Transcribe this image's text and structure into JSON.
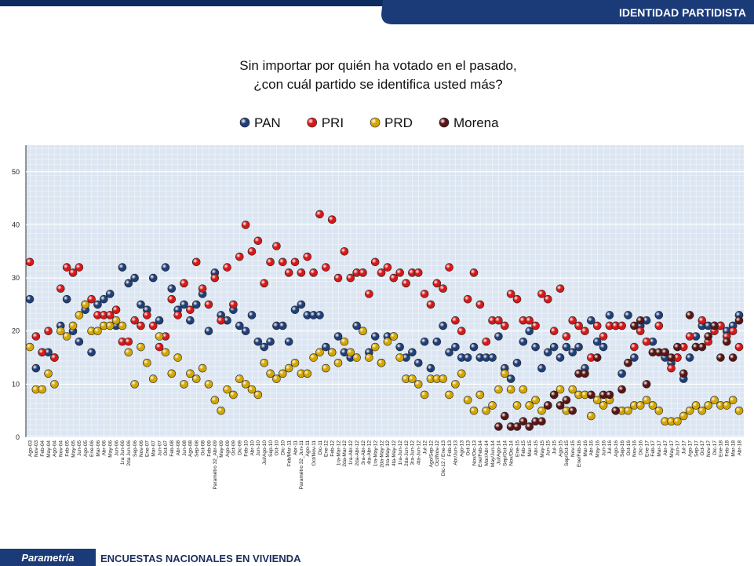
{
  "header": {
    "section": "IDENTIDAD PARTIDISTA"
  },
  "footer": {
    "brand": "Parametría",
    "caption": "ENCUESTAS NACIONALES  EN VIVIENDA"
  },
  "chart_data": {
    "type": "scatter",
    "title": [
      "Sin importar por quién ha votado en el pasado,",
      "¿con cuál partido se identifica usted más?"
    ],
    "categories": [
      "Ago-03",
      "Nov-03",
      "Feb-04",
      "May-04",
      "Ago-04",
      "Nov-04",
      "Feb-05",
      "May-05",
      "Jun-05",
      "Ago-05",
      "Ene-06",
      "Mar-06",
      "Abr-06",
      "May-06",
      "Jun-06",
      "1ra Jun-06",
      "2da Jun-06",
      "Sep-06",
      "Nov-06",
      "Ene-07",
      "Mar-07",
      "Jun-07",
      "Oct-07",
      "Feb-08",
      "Abr-08",
      "Jun-08",
      "Ago-08",
      "Sep-08",
      "Oct-08",
      "Feb-09",
      "Paramétro 32_Abr-09",
      "May-09",
      "Ago-09",
      "Oct-09",
      "Dic-09",
      "Feb-10",
      "Abr-10",
      "Jun-10",
      "Jul/Ago-10",
      "Sep-10",
      "Oct-10",
      "Dic-10",
      "Feb/Mar-11",
      "Abr-11",
      "Paramétro 32_Jun-11",
      "Ago-11",
      "Oct/Nov-11",
      "Dic-11",
      "Ene-12",
      "Feb-12",
      "1ra-Mar-12",
      "2da-Mar-12",
      "1ra-Abr-12",
      "2da-Abr-12",
      "3ra-Abr-12",
      "4ta-Abr-12",
      "1ra-May-12",
      "2da-May-12",
      "3ra-May-12",
      "4ta-May-12",
      "1ra-Jun-12",
      "2da-Jun-12",
      "3ra-Jun-12",
      "4ta-Jun-12",
      "Jul-12",
      "Ago/Sep-12",
      "Oct/Nov-12",
      "Dic-12 / Ene-13",
      "Feb-13",
      "Abr/Jun-13",
      "Ago-13",
      "Oct-13",
      "Nov/Dic-13",
      "Ene/Feb-14",
      "Mar/Abr-14",
      "May/Jun-14",
      "Jul/Ago-14",
      "Sep/Oct-14",
      "Nov/Dic-14",
      "Ene-15",
      "Feb-15",
      "Mar-15",
      "Abr-15",
      "May-15",
      "Jun-15",
      "Jul-15",
      "Ago-15",
      "Sep/Oct-15",
      "Nov-15",
      "Ene/Feb-16",
      "Mar-16",
      "Abr-16",
      "May-16",
      "Jun-16",
      "Jul-16",
      "Ago-16",
      "Sep-16",
      "Oct-16",
      "Nov-16",
      "Dic-16",
      "Ene-17",
      "Feb-17",
      "Mar-17",
      "Abr-17",
      "May-17",
      "Jun-17",
      "Jul-17",
      "Ago-17",
      "Sep-17",
      "Oct-17",
      "Nov-17",
      "Dic-17",
      "Ene-18",
      "Feb-18",
      "Mar-18",
      "Abr-18"
    ],
    "series": [
      {
        "name": "PAN",
        "color": "#1f3f7a",
        "values": [
          26,
          13,
          16,
          16,
          15,
          21,
          26,
          20,
          18,
          24,
          16,
          25,
          26,
          27,
          21,
          32,
          29,
          30,
          25,
          24,
          30,
          22,
          32,
          28,
          24,
          25,
          22,
          25,
          27,
          20,
          31,
          23,
          22,
          24,
          21,
          20,
          23,
          18,
          17,
          18,
          21,
          21,
          18,
          24,
          25,
          23,
          23,
          23,
          17,
          16,
          19,
          16,
          15,
          21,
          20,
          16,
          19,
          14,
          19,
          19,
          17,
          15,
          16,
          14,
          18,
          13,
          18,
          21,
          16,
          17,
          15,
          15,
          17,
          15,
          15,
          15,
          19,
          13,
          11,
          14,
          18,
          20,
          17,
          13,
          16,
          17,
          15,
          17,
          16,
          17,
          13,
          22,
          18,
          17,
          23,
          21,
          12,
          23,
          15,
          21,
          22,
          18,
          23,
          15,
          14,
          15,
          11,
          15,
          19,
          21,
          21,
          21,
          21,
          20,
          21,
          23
        ]
      },
      {
        "name": "PRI",
        "color": "#d81818",
        "values": [
          33,
          19,
          16,
          20,
          15,
          28,
          32,
          31,
          32,
          25,
          26,
          23,
          23,
          23,
          24,
          18,
          18,
          22,
          21,
          23,
          21,
          17,
          19,
          26,
          23,
          29,
          24,
          33,
          28,
          25,
          30,
          22,
          32,
          25,
          34,
          40,
          35,
          37,
          29,
          33,
          36,
          33,
          31,
          33,
          31,
          34,
          31,
          42,
          32,
          41,
          30,
          35,
          30,
          31,
          31,
          27,
          33,
          31,
          32,
          30,
          31,
          29,
          31,
          31,
          27,
          25,
          29,
          28,
          32,
          22,
          20,
          26,
          31,
          25,
          18,
          22,
          22,
          21,
          27,
          26,
          22,
          22,
          21,
          27,
          26,
          20,
          28,
          19,
          22,
          21,
          20,
          15,
          21,
          19,
          21,
          21,
          21,
          14,
          17,
          20,
          18,
          16,
          21,
          16,
          13,
          15,
          17,
          19,
          17,
          22,
          18,
          20,
          21,
          19,
          20,
          17
        ]
      },
      {
        "name": "PRD",
        "color": "#d4a600",
        "values": [
          17,
          9,
          9,
          12,
          10,
          20,
          19,
          21,
          23,
          25,
          20,
          20,
          21,
          21,
          22,
          21,
          16,
          10,
          17,
          14,
          11,
          19,
          16,
          12,
          15,
          10,
          12,
          11,
          13,
          10,
          7,
          5,
          9,
          8,
          11,
          10,
          9,
          8,
          14,
          12,
          11,
          12,
          13,
          14,
          12,
          12,
          15,
          16,
          13,
          16,
          14,
          18,
          16,
          15,
          20,
          15,
          17,
          14,
          18,
          19,
          15,
          11,
          11,
          10,
          8,
          11,
          11,
          11,
          8,
          10,
          12,
          7,
          5,
          8,
          5,
          6,
          9,
          12,
          9,
          6,
          9,
          6,
          7,
          5,
          6,
          8,
          9,
          5,
          9,
          8,
          8,
          4,
          7,
          6,
          7,
          5,
          5,
          5,
          6,
          6,
          7,
          6,
          5,
          3,
          3,
          3,
          4,
          5,
          6,
          5,
          6,
          7,
          6,
          6,
          7,
          5
        ]
      },
      {
        "name": "Morena",
        "color": "#5a1414",
        "values": [
          null,
          null,
          null,
          null,
          null,
          null,
          null,
          null,
          null,
          null,
          null,
          null,
          null,
          null,
          null,
          null,
          null,
          null,
          null,
          null,
          null,
          null,
          null,
          null,
          null,
          null,
          null,
          null,
          null,
          null,
          null,
          null,
          null,
          null,
          null,
          null,
          null,
          null,
          null,
          null,
          null,
          null,
          null,
          null,
          null,
          null,
          null,
          null,
          null,
          null,
          null,
          null,
          null,
          null,
          null,
          null,
          null,
          null,
          null,
          null,
          null,
          null,
          null,
          null,
          null,
          null,
          null,
          null,
          null,
          null,
          null,
          null,
          null,
          null,
          null,
          null,
          2,
          4,
          2,
          2,
          3,
          2,
          3,
          3,
          6,
          8,
          6,
          7,
          5,
          12,
          12,
          8,
          15,
          8,
          8,
          5,
          9,
          14,
          21,
          22,
          10,
          16,
          16,
          16,
          15,
          17,
          12,
          23,
          17,
          17,
          19,
          21,
          15,
          18,
          15,
          22
        ]
      }
    ],
    "ylim": [
      0,
      55
    ],
    "yticks": [
      0,
      10,
      20,
      30,
      40,
      50
    ],
    "grid": true,
    "legend": "top"
  }
}
